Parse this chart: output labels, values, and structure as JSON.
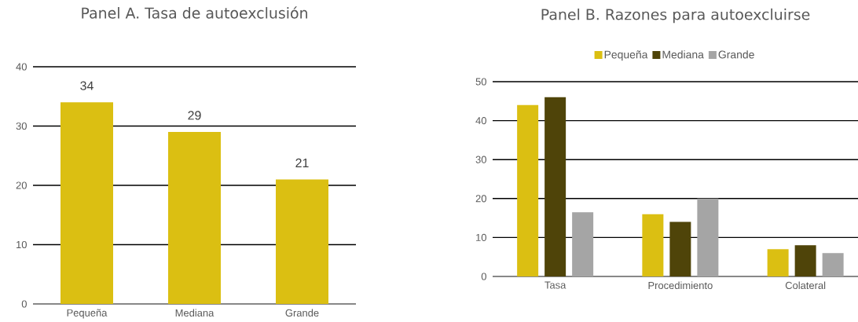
{
  "chart_data": [
    {
      "type": "bar",
      "title": "Panel A. Tasa de autoexclusión",
      "categories": [
        "Pequeña",
        "Mediana",
        "Grande"
      ],
      "values": [
        34,
        29,
        21
      ],
      "color": "#dbbf12",
      "ylim": [
        0,
        40
      ],
      "yticks": [
        0,
        10,
        20,
        30,
        40
      ],
      "grid": "y",
      "data_labels": true
    },
    {
      "type": "bar",
      "title": "Panel B. Razones para autoexcluirse",
      "categories": [
        "Tasa",
        "Procedimiento",
        "Colateral"
      ],
      "series": [
        {
          "name": "Pequeña",
          "color": "#dbbf12",
          "values": [
            44,
            16,
            7
          ]
        },
        {
          "name": "Mediana",
          "color": "#4f4409",
          "values": [
            46,
            14,
            8
          ]
        },
        {
          "name": "Grande",
          "color": "#a5a5a5",
          "values": [
            16.5,
            20,
            6
          ]
        }
      ],
      "ylim": [
        0,
        50
      ],
      "yticks": [
        0,
        10,
        20,
        30,
        40,
        50
      ],
      "grid": "y",
      "legend": "top"
    }
  ]
}
